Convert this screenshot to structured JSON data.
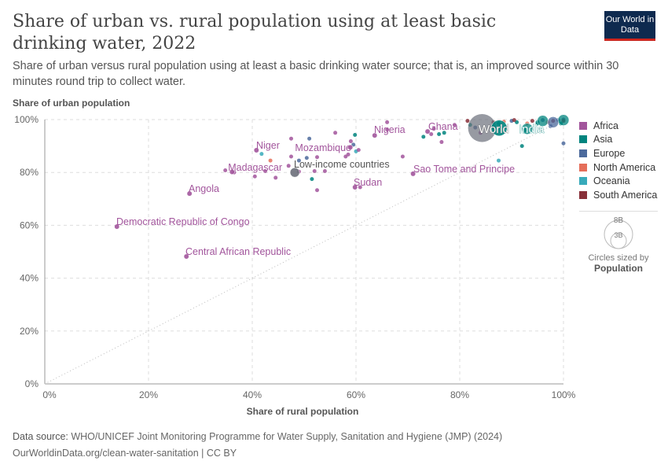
{
  "header": {
    "title": "Share of urban vs. rural population using at least basic drinking water, 2022",
    "subtitle": "Share of urban versus rural population using at least a basic drinking water source; that is, an improved source within 30 minutes round trip to collect water.",
    "logo": "Our World in Data"
  },
  "footer": {
    "source_label": "Data source:",
    "source": "WHO/UNICEF Joint Monitoring Programme for Water Supply, Sanitation and Hygiene (JMP) (2024)",
    "url": "OurWorldinData.org/clean-water-sanitation | CC BY"
  },
  "size_legend": {
    "big": "8B",
    "small": "3B",
    "caption": "Circles sized by",
    "variable": "Population"
  },
  "chart_data": {
    "type": "scatter",
    "xlabel": "Share of rural population",
    "ylabel": "Share of urban population",
    "xlim": [
      0,
      100
    ],
    "ylim": [
      0,
      100
    ],
    "xticks": [
      "0%",
      "20%",
      "40%",
      "60%",
      "80%",
      "100%"
    ],
    "yticks": [
      "0%",
      "20%",
      "40%",
      "60%",
      "80%",
      "100%"
    ],
    "grid": true,
    "legend_placement": "right",
    "regions": [
      {
        "name": "Africa",
        "color": "#a2559c"
      },
      {
        "name": "Asia",
        "color": "#00847e"
      },
      {
        "name": "Europe",
        "color": "#4c6a9c"
      },
      {
        "name": "North America",
        "color": "#e56e5a"
      },
      {
        "name": "Oceania",
        "color": "#38aaba"
      },
      {
        "name": "South America",
        "color": "#883039"
      }
    ],
    "labeled_points": [
      {
        "label": "Democratic Republic of Congo",
        "x": 13.9,
        "y": 59.5,
        "region": "Africa"
      },
      {
        "label": "Central African Republic",
        "x": 27.3,
        "y": 48.2,
        "region": "Africa"
      },
      {
        "label": "Angola",
        "x": 27.9,
        "y": 72,
        "region": "Africa"
      },
      {
        "label": "Madagascar",
        "x": 36.1,
        "y": 80.2,
        "region": "Africa"
      },
      {
        "label": "Niger",
        "x": 40.8,
        "y": 88.4,
        "region": "Africa"
      },
      {
        "label": "Mozambique",
        "x": 58.9,
        "y": 89.5,
        "region": "Africa"
      },
      {
        "label": "Low-income countries",
        "x": 48.2,
        "y": 80,
        "region": "World",
        "size": "large"
      },
      {
        "label": "Nigeria",
        "x": 63.6,
        "y": 94,
        "region": "Africa"
      },
      {
        "label": "Ghana",
        "x": 73.8,
        "y": 95.5,
        "region": "Africa"
      },
      {
        "label": "Sudan",
        "x": 59.8,
        "y": 74.4,
        "region": "Africa"
      },
      {
        "label": "Sao Tome and Principe",
        "x": 71,
        "y": 79.5,
        "region": "Africa"
      },
      {
        "label": "World",
        "x": 84.3,
        "y": 96.8,
        "region": "World",
        "size": "world"
      },
      {
        "label": "India",
        "x": 87.6,
        "y": 96.8,
        "region": "Asia",
        "size": "india"
      }
    ],
    "points": [
      [
        34.8,
        80.8,
        "Africa"
      ],
      [
        36.5,
        80,
        "Africa"
      ],
      [
        40.5,
        78.5,
        "Africa"
      ],
      [
        42.5,
        80.5,
        "Africa"
      ],
      [
        43.5,
        84.5,
        "North America"
      ],
      [
        44.5,
        78,
        "Africa"
      ],
      [
        41.8,
        87,
        "Oceania"
      ],
      [
        47.5,
        92.8,
        "Africa"
      ],
      [
        51,
        92.8,
        "Europe"
      ],
      [
        56,
        95,
        "Africa"
      ],
      [
        47.5,
        86,
        "Africa"
      ],
      [
        49,
        84.5,
        "Europe"
      ],
      [
        50.5,
        85.5,
        "Europe"
      ],
      [
        52.5,
        85.8,
        "Africa"
      ],
      [
        47,
        82.5,
        "Africa"
      ],
      [
        49,
        80.3,
        "Africa"
      ],
      [
        52,
        80.5,
        "Africa"
      ],
      [
        54,
        80.5,
        "Africa"
      ],
      [
        51.5,
        77.5,
        "Asia"
      ],
      [
        52.5,
        73.3,
        "Africa"
      ],
      [
        58,
        86,
        "Africa"
      ],
      [
        58.5,
        86.8,
        "Africa"
      ],
      [
        59,
        91.8,
        "Africa"
      ],
      [
        59.5,
        90.5,
        "Europe"
      ],
      [
        60,
        88,
        "Oceania"
      ],
      [
        60.5,
        88.5,
        "Africa"
      ],
      [
        59.8,
        94.2,
        "Asia"
      ],
      [
        60.8,
        74.4,
        "Africa"
      ],
      [
        66,
        99,
        "Africa"
      ],
      [
        66,
        96.2,
        "Africa"
      ],
      [
        69,
        86,
        "Africa"
      ],
      [
        73,
        93.5,
        "Asia"
      ],
      [
        74.5,
        94.5,
        "Africa"
      ],
      [
        75,
        96.5,
        "Africa"
      ],
      [
        76,
        94.5,
        "Asia"
      ],
      [
        77,
        95,
        "Asia"
      ],
      [
        76.5,
        91.5,
        "Africa"
      ],
      [
        79,
        98,
        "Africa"
      ],
      [
        81.5,
        99.5,
        "South America"
      ],
      [
        82,
        98,
        "Asia"
      ],
      [
        83,
        97,
        "Europe"
      ],
      [
        84,
        95,
        "Africa"
      ],
      [
        86.5,
        99,
        "South America"
      ],
      [
        87.5,
        98.5,
        "Asia"
      ],
      [
        90,
        99.5,
        "Europe"
      ],
      [
        91,
        99,
        "Asia"
      ],
      [
        92.5,
        96,
        "Asia"
      ],
      [
        93,
        98.5,
        "North America"
      ],
      [
        94,
        99.5,
        "South America"
      ],
      [
        95,
        98.5,
        "Asia"
      ],
      [
        96,
        99.8,
        "Europe"
      ],
      [
        97,
        99,
        "North America"
      ],
      [
        98,
        99.5,
        "South America"
      ],
      [
        99,
        99.8,
        "Europe"
      ],
      [
        100,
        100,
        "Europe"
      ],
      [
        100,
        99.5,
        "South America"
      ],
      [
        99.5,
        98.5,
        "Asia"
      ],
      [
        97.5,
        97.5,
        "Europe"
      ],
      [
        100,
        91,
        "Europe"
      ],
      [
        92,
        90,
        "Asia"
      ],
      [
        87.5,
        84.5,
        "Oceania"
      ],
      [
        90.5,
        99.8,
        "South America"
      ],
      [
        88.5,
        99.2,
        "North America"
      ],
      [
        95,
        99,
        "Asia"
      ]
    ],
    "large_points": [
      [
        96,
        99.5,
        "Asia"
      ],
      [
        98,
        99,
        "Europe"
      ],
      [
        100,
        99.8,
        "Asia"
      ],
      [
        93,
        96.5,
        "Asia"
      ]
    ]
  }
}
